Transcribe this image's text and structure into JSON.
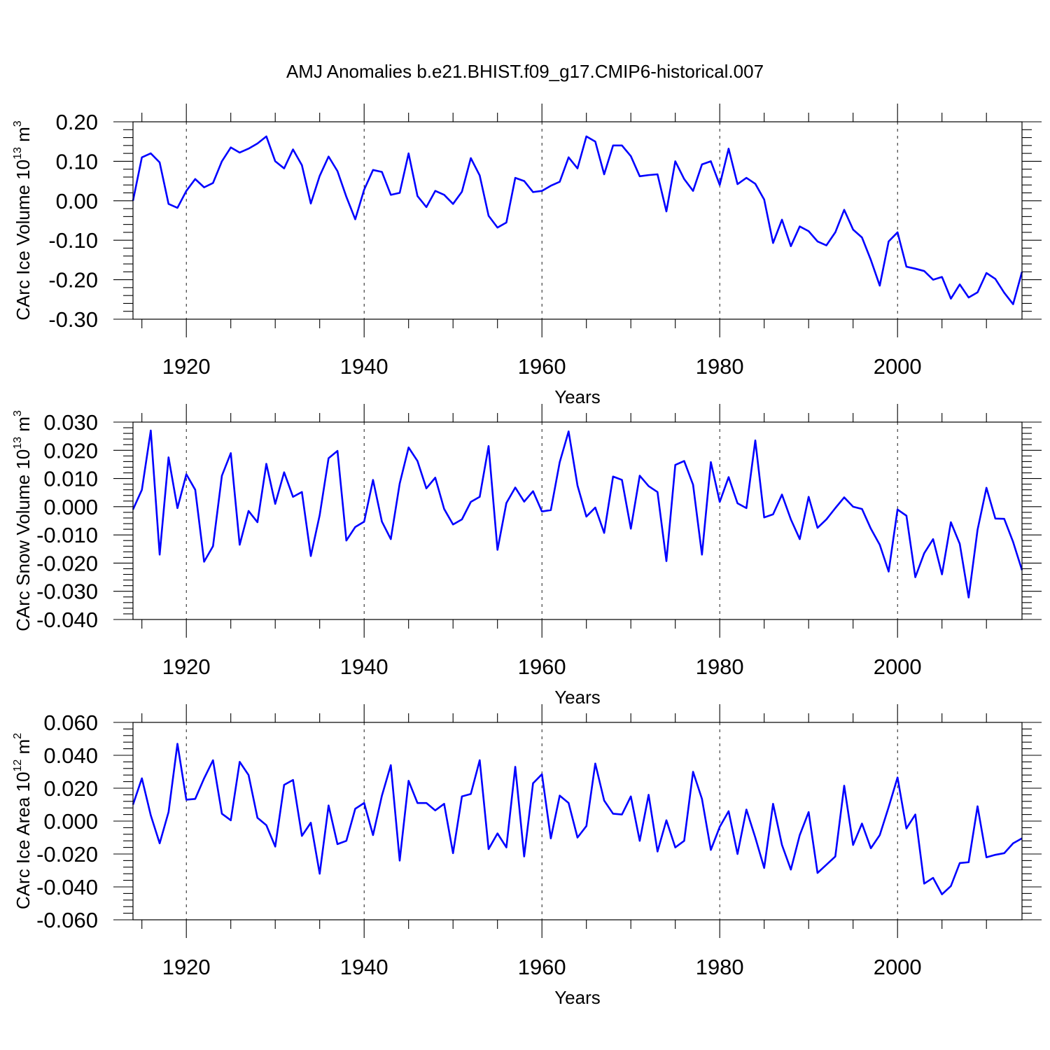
{
  "chart_data": {
    "title": "AMJ Anomalies b.e21.BHIST.f09_g17.CMIP6-historical.007",
    "x_start": 1914,
    "x_end": 2014,
    "xlim": [
      1914,
      2014
    ],
    "xticks": [
      1920,
      1940,
      1960,
      1980,
      2000
    ],
    "xtick_labels": [
      "1920",
      "1940",
      "1960",
      "1980",
      "2000"
    ],
    "panels": [
      {
        "type": "line",
        "xlabel": "Years",
        "ylabel": "CArc Ice Volume 10",
        "ylabel_exp": "13",
        "ylabel_unit": " m",
        "ylabel_unit_exp": "3",
        "ylim": [
          -0.3,
          0.2
        ],
        "yticks": [
          0.2,
          0.1,
          0.0,
          -0.1,
          -0.2,
          -0.3
        ],
        "ytick_labels": [
          "0.20",
          "0.10",
          "0.00",
          "-0.10",
          "-0.20",
          "-0.30"
        ],
        "series": [
          {
            "name": "CArc Ice Volume",
            "color": "#0000ff",
            "values": [
              0.0,
              0.11,
              0.12,
              0.097,
              -0.008,
              -0.018,
              0.025,
              0.055,
              0.034,
              0.045,
              0.1,
              0.135,
              0.122,
              0.132,
              0.145,
              0.163,
              0.1,
              0.082,
              0.13,
              0.09,
              -0.007,
              0.063,
              0.112,
              0.075,
              0.01,
              -0.047,
              0.028,
              0.078,
              0.073,
              0.015,
              0.02,
              0.12,
              0.012,
              -0.016,
              0.025,
              0.015,
              -0.008,
              0.023,
              0.108,
              0.064,
              -0.038,
              -0.068,
              -0.055,
              0.058,
              0.05,
              0.022,
              0.025,
              0.038,
              0.048,
              0.11,
              0.082,
              0.163,
              0.15,
              0.067,
              0.14,
              0.14,
              0.113,
              0.062,
              0.065,
              0.067,
              -0.027,
              0.1,
              0.055,
              0.025,
              0.092,
              0.1,
              0.04,
              0.132,
              0.042,
              0.058,
              0.043,
              0.003,
              -0.107,
              -0.048,
              -0.115,
              -0.065,
              -0.077,
              -0.103,
              -0.113,
              -0.08,
              -0.023,
              -0.073,
              -0.093,
              -0.15,
              -0.215,
              -0.103,
              -0.08,
              -0.167,
              -0.172,
              -0.178,
              -0.2,
              -0.193,
              -0.248,
              -0.212,
              -0.245,
              -0.232,
              -0.183,
              -0.198,
              -0.233,
              -0.262,
              -0.18
            ]
          }
        ]
      },
      {
        "type": "line",
        "xlabel": "Years",
        "ylabel": "CArc Snow Volume 10",
        "ylabel_exp": "13",
        "ylabel_unit": " m",
        "ylabel_unit_exp": "3",
        "ylim": [
          -0.04,
          0.03
        ],
        "yticks": [
          0.03,
          0.02,
          0.01,
          0.0,
          -0.01,
          -0.02,
          -0.03,
          -0.04
        ],
        "ytick_labels": [
          "0.030",
          "0.020",
          "0.010",
          "0.000",
          "-0.010",
          "-0.020",
          "-0.030",
          "-0.040"
        ],
        "series": [
          {
            "name": "CArc Snow Volume",
            "color": "#0000ff",
            "values": [
              -0.001,
              0.006,
              0.027,
              -0.017,
              0.0175,
              -0.0005,
              0.0115,
              0.006,
              -0.0195,
              -0.014,
              0.011,
              0.019,
              -0.0135,
              -0.0015,
              -0.0055,
              0.0152,
              0.001,
              0.0122,
              0.0035,
              0.0052,
              -0.0175,
              -0.003,
              0.0172,
              0.0198,
              -0.012,
              -0.0072,
              -0.0053,
              0.0095,
              -0.0053,
              -0.0115,
              0.0082,
              0.021,
              0.0162,
              0.0065,
              0.0103,
              -0.0008,
              -0.0063,
              -0.0045,
              0.0017,
              0.0035,
              0.0215,
              -0.0153,
              0.0013,
              0.0068,
              0.0018,
              0.0055,
              -0.0017,
              -0.0012,
              0.0158,
              0.0267,
              0.0075,
              -0.0035,
              -0.0003,
              -0.0093,
              0.0107,
              0.0095,
              -0.0078,
              0.011,
              0.0073,
              0.0052,
              -0.0193,
              0.0148,
              0.0162,
              0.0078,
              -0.017,
              0.0158,
              0.0017,
              0.0105,
              0.0012,
              -0.0005,
              0.0235,
              -0.0038,
              -0.0027,
              0.0043,
              -0.0045,
              -0.0115,
              0.0035,
              -0.0075,
              -0.0045,
              -0.0005,
              0.0033,
              0.0,
              -0.0008,
              -0.0078,
              -0.0135,
              -0.023,
              -0.001,
              -0.0032,
              -0.025,
              -0.0165,
              -0.0115,
              -0.024,
              -0.0055,
              -0.0132,
              -0.0322,
              -0.0082,
              0.0067,
              -0.0042,
              -0.0043,
              -0.0125,
              -0.0225
            ]
          }
        ]
      },
      {
        "type": "line",
        "xlabel": "Years",
        "ylabel": "CArc Ice Area 10",
        "ylabel_exp": "12",
        "ylabel_unit": " m",
        "ylabel_unit_exp": "2",
        "ylim": [
          -0.06,
          0.06
        ],
        "yticks": [
          0.06,
          0.04,
          0.02,
          0.0,
          -0.02,
          -0.04,
          -0.06
        ],
        "ytick_labels": [
          "0.060",
          "0.040",
          "0.020",
          "0.000",
          "-0.020",
          "-0.040",
          "-0.060"
        ],
        "series": [
          {
            "name": "CArc Ice Area",
            "color": "#0000ff",
            "values": [
              0.01,
              0.026,
              0.0035,
              -0.0135,
              0.0055,
              0.047,
              0.013,
              0.0135,
              0.026,
              0.037,
              0.0045,
              0.0005,
              0.036,
              0.028,
              0.002,
              -0.0025,
              -0.0155,
              0.022,
              0.025,
              -0.009,
              -0.001,
              -0.032,
              0.0095,
              -0.014,
              -0.012,
              0.0075,
              0.011,
              -0.0085,
              0.0155,
              0.034,
              -0.024,
              0.0245,
              0.011,
              0.011,
              0.0065,
              0.0105,
              -0.0195,
              0.015,
              0.0165,
              0.037,
              -0.017,
              -0.0075,
              -0.016,
              0.033,
              -0.0215,
              0.023,
              0.0285,
              -0.0105,
              0.0155,
              0.011,
              -0.01,
              -0.003,
              0.035,
              0.0125,
              0.0045,
              0.004,
              0.015,
              -0.012,
              0.016,
              -0.0185,
              0.0005,
              -0.016,
              -0.012,
              0.03,
              0.0135,
              -0.0175,
              -0.0035,
              0.006,
              -0.02,
              0.007,
              -0.01,
              -0.0285,
              0.0105,
              -0.0145,
              -0.0295,
              -0.0085,
              0.0055,
              -0.0315,
              -0.0265,
              -0.0215,
              0.0215,
              -0.0145,
              -0.0015,
              -0.0165,
              -0.0085,
              0.0085,
              0.0265,
              -0.0045,
              0.004,
              -0.038,
              -0.0345,
              -0.0445,
              -0.0395,
              -0.0255,
              -0.025,
              0.009,
              -0.022,
              -0.0205,
              -0.0195,
              -0.0135,
              -0.0105
            ]
          }
        ]
      }
    ]
  }
}
